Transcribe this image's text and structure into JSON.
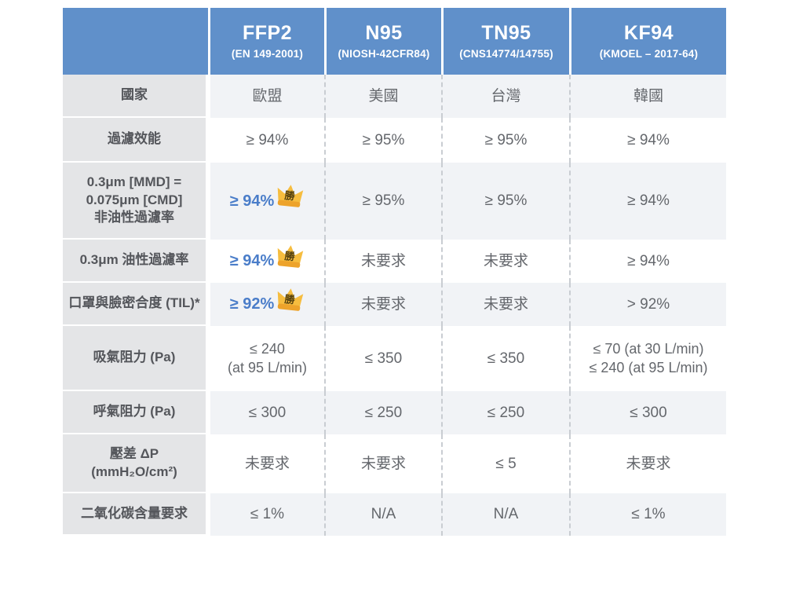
{
  "colors": {
    "header_bg": "#6090CA",
    "accent_blue": "#4A7DC9",
    "label_bg": "#E4E5E7",
    "stripe_bg": "#F1F3F6",
    "crown_gold": "#F6BD3F",
    "crown_band": "#EDA32B"
  },
  "table": {
    "columns": [
      {
        "key": "ffp2",
        "title": "FFP2",
        "subtitle": "(EN 149-2001)"
      },
      {
        "key": "n95",
        "title": "N95",
        "subtitle": "(NIOSH-42CFR84)"
      },
      {
        "key": "tn95",
        "title": "TN95",
        "subtitle": "(CNS14774/14755)"
      },
      {
        "key": "kf94",
        "title": "KF94",
        "subtitle": "(KMOEL – 2017-64)"
      }
    ],
    "rows": [
      {
        "label_lines": [
          "國家"
        ],
        "cells": [
          {
            "lines": [
              "歐盟"
            ]
          },
          {
            "lines": [
              "美國"
            ]
          },
          {
            "lines": [
              "台灣"
            ]
          },
          {
            "lines": [
              "韓國"
            ]
          }
        ]
      },
      {
        "label_lines": [
          "過濾效能"
        ],
        "cells": [
          {
            "lines": [
              "≥ 94%"
            ]
          },
          {
            "lines": [
              "≥ 95%"
            ]
          },
          {
            "lines": [
              "≥ 95%"
            ]
          },
          {
            "lines": [
              "≥ 94%"
            ]
          }
        ]
      },
      {
        "label_lines": [
          "0.3μm [MMD] =",
          "0.075μm [CMD]",
          "非油性過濾率"
        ],
        "cells": [
          {
            "lines": [
              "≥ 94%"
            ],
            "highlight": true,
            "badge": "勝"
          },
          {
            "lines": [
              "≥ 95%"
            ]
          },
          {
            "lines": [
              "≥ 95%"
            ]
          },
          {
            "lines": [
              "≥ 94%"
            ]
          }
        ]
      },
      {
        "label_lines": [
          "0.3μm 油性過濾率"
        ],
        "cells": [
          {
            "lines": [
              "≥ 94%"
            ],
            "highlight": true,
            "badge": "勝"
          },
          {
            "lines": [
              "未要求"
            ]
          },
          {
            "lines": [
              "未要求"
            ]
          },
          {
            "lines": [
              "≥ 94%"
            ]
          }
        ]
      },
      {
        "label_lines": [
          "口罩與臉密合度 (TIL)*"
        ],
        "cells": [
          {
            "lines": [
              "≥ 92%"
            ],
            "highlight": true,
            "badge": "勝"
          },
          {
            "lines": [
              "未要求"
            ]
          },
          {
            "lines": [
              "未要求"
            ]
          },
          {
            "lines": [
              "> 92%"
            ]
          }
        ]
      },
      {
        "label_lines": [
          "吸氣阻力 (Pa)"
        ],
        "cells": [
          {
            "lines": [
              "≤ 240",
              "(at 95 L/min)"
            ]
          },
          {
            "lines": [
              "≤ 350"
            ]
          },
          {
            "lines": [
              "≤ 350"
            ]
          },
          {
            "lines": [
              "≤ 70 (at 30 L/min)",
              "≤ 240 (at 95 L/min)"
            ]
          }
        ]
      },
      {
        "label_lines": [
          "呼氣阻力 (Pa)"
        ],
        "cells": [
          {
            "lines": [
              "≤ 300"
            ]
          },
          {
            "lines": [
              "≤ 250"
            ]
          },
          {
            "lines": [
              "≤ 250"
            ]
          },
          {
            "lines": [
              "≤ 300"
            ]
          }
        ]
      },
      {
        "label_lines": [
          "壓差 ΔP",
          "(mmH₂O/cm²)"
        ],
        "cells": [
          {
            "lines": [
              "未要求"
            ]
          },
          {
            "lines": [
              "未要求"
            ]
          },
          {
            "lines": [
              "≤ 5"
            ]
          },
          {
            "lines": [
              "未要求"
            ]
          }
        ]
      },
      {
        "label_lines": [
          "二氧化碳含量要求"
        ],
        "cells": [
          {
            "lines": [
              "≤ 1%"
            ]
          },
          {
            "lines": [
              "N/A"
            ]
          },
          {
            "lines": [
              "N/A"
            ]
          },
          {
            "lines": [
              "≤ 1%"
            ]
          }
        ]
      }
    ]
  },
  "chart_data": {
    "type": "table",
    "columns": [
      "",
      "FFP2 (EN 149-2001)",
      "N95 (NIOSH-42CFR84)",
      "TN95 (CNS14774/14755)",
      "KF94 (KMOEL – 2017-64)"
    ],
    "rows": [
      [
        "國家",
        "歐盟",
        "美國",
        "台灣",
        "韓國"
      ],
      [
        "過濾效能",
        "≥ 94%",
        "≥ 95%",
        "≥ 95%",
        "≥ 94%"
      ],
      [
        "0.3μm [MMD] = 0.075μm [CMD] 非油性過濾率",
        "≥ 94% 勝",
        "≥ 95%",
        "≥ 95%",
        "≥ 94%"
      ],
      [
        "0.3μm 油性過濾率",
        "≥ 94% 勝",
        "未要求",
        "未要求",
        "≥ 94%"
      ],
      [
        "口罩與臉密合度 (TIL)*",
        "≥ 92% 勝",
        "未要求",
        "未要求",
        "> 92%"
      ],
      [
        "吸氣阻力 (Pa)",
        "≤ 240 (at 95 L/min)",
        "≤ 350",
        "≤ 350",
        "≤ 70 (at 30 L/min); ≤ 240 (at 95 L/min)"
      ],
      [
        "呼氣阻力 (Pa)",
        "≤ 300",
        "≤ 250",
        "≤ 250",
        "≤ 300"
      ],
      [
        "壓差 ΔP (mmH₂O/cm²)",
        "未要求",
        "未要求",
        "≤ 5",
        "未要求"
      ],
      [
        "二氧化碳含量要求",
        "≤ 1%",
        "N/A",
        "N/A",
        "≤ 1%"
      ]
    ]
  }
}
